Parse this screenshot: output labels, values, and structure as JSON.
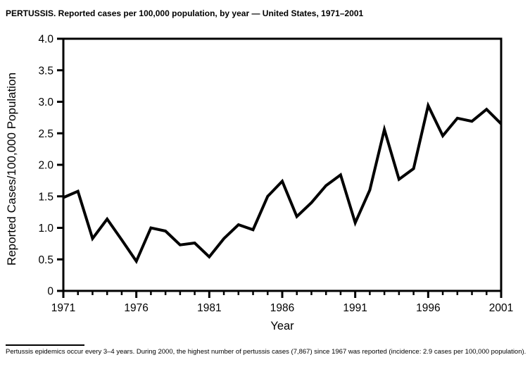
{
  "page": {
    "footnote": "Pertussis epidemics occur every 3–4 years. During 2000, the highest number of pertussis cases (7,867) since 1967 was reported (incidence: 2.9 cases per 100,000 population)."
  },
  "chart_data": {
    "type": "line",
    "title": "PERTUSSIS. Reported cases per 100,000 population, by year — United States, 1971–2001",
    "xlabel": "Year",
    "ylabel": "Reported Cases/100,000 Population",
    "x": [
      1971,
      1972,
      1973,
      1974,
      1975,
      1976,
      1977,
      1978,
      1979,
      1980,
      1981,
      1982,
      1983,
      1984,
      1985,
      1986,
      1987,
      1988,
      1989,
      1990,
      1991,
      1992,
      1993,
      1994,
      1995,
      1996,
      1997,
      1998,
      1999,
      2000,
      2001
    ],
    "values": [
      1.48,
      1.58,
      0.83,
      1.14,
      0.81,
      0.47,
      1.0,
      0.95,
      0.73,
      0.76,
      0.54,
      0.83,
      1.05,
      0.97,
      1.5,
      1.74,
      1.18,
      1.4,
      1.67,
      1.84,
      1.08,
      1.6,
      2.56,
      1.77,
      1.94,
      2.94,
      2.46,
      2.74,
      2.69,
      2.88,
      2.65
    ],
    "ylim": [
      0,
      4.0
    ],
    "ytick_step": 0.5,
    "ytick_labels": [
      "0",
      "0.5",
      "1.0",
      "1.5",
      "2.0",
      "2.5",
      "3.0",
      "3.5",
      "4.0"
    ],
    "xticks_labeled": [
      1971,
      1976,
      1981,
      1986,
      1991,
      1996,
      2001
    ],
    "xtick_minor_every": 1,
    "grid": false,
    "legend": "none",
    "line_color": "#000000",
    "line_width": 4,
    "frame_color": "#000000",
    "background": "#ffffff"
  }
}
